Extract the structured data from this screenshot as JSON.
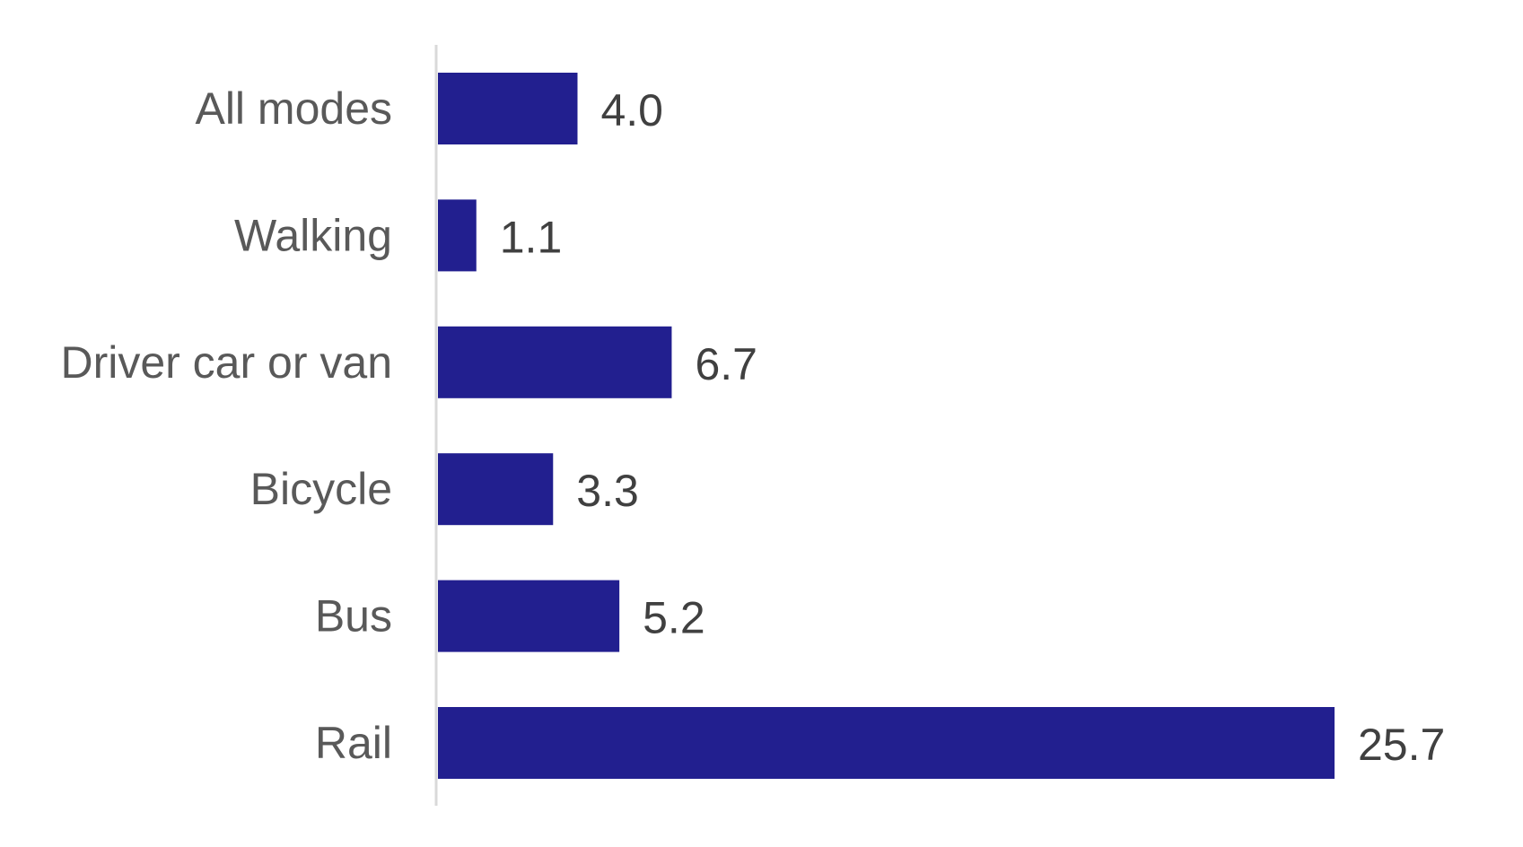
{
  "chart_data": {
    "type": "bar",
    "orientation": "horizontal",
    "title": "",
    "xlabel": "",
    "ylabel": "",
    "categories": [
      "All modes",
      "Walking",
      "Driver car or van",
      "Bicycle",
      "Bus",
      "Rail"
    ],
    "series": [
      {
        "values": [
          4.0,
          1.1,
          6.7,
          3.3,
          5.2,
          25.7
        ],
        "value_labels": [
          "4.0",
          "1.1",
          "6.7",
          "3.3",
          "5.2",
          "25.7"
        ],
        "color": "#221f8f"
      }
    ],
    "xlim": [
      0,
      25.7
    ],
    "grid": false,
    "legend": "none",
    "axis_color": "#d9d9d9"
  }
}
